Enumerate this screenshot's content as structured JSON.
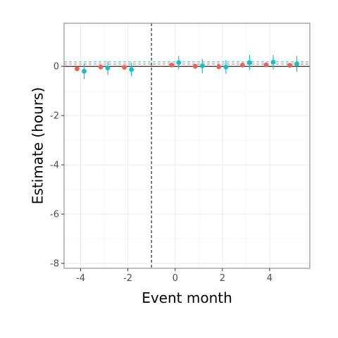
{
  "chart_data": {
    "type": "scatter",
    "title": "",
    "xlabel": "Event month",
    "ylabel": "Estimate (hours)",
    "xlim": [
      -4.7,
      5.7
    ],
    "ylim": [
      -8.2,
      1.75
    ],
    "x_ticks": [
      -4,
      -2,
      0,
      2,
      4
    ],
    "x_tick_labels": [
      "-4",
      "-2",
      "0",
      "2",
      "4"
    ],
    "y_ticks": [
      -8,
      -6,
      -4,
      -2,
      0
    ],
    "y_tick_labels": [
      "-8",
      "-6",
      "-4",
      "-2",
      "0"
    ],
    "grid": true,
    "legend": "none",
    "reference_lines": {
      "horizontal_solid_y": 0,
      "vertical_dashed_x": -1
    },
    "series": [
      {
        "color": "#e8645a",
        "points": [
          {
            "x": -4.15,
            "y": -0.1,
            "lo": -0.1,
            "hi": -0.1
          },
          {
            "x": -3.15,
            "y": -0.03,
            "lo": -0.03,
            "hi": -0.03
          },
          {
            "x": -2.15,
            "y": -0.04,
            "lo": -0.04,
            "hi": -0.04
          },
          {
            "x": -0.15,
            "y": 0.05,
            "lo": 0.05,
            "hi": 0.05
          },
          {
            "x": 0.85,
            "y": 0.0,
            "lo": 0.0,
            "hi": 0.0
          },
          {
            "x": 1.85,
            "y": -0.02,
            "lo": -0.02,
            "hi": -0.02
          },
          {
            "x": 2.85,
            "y": 0.05,
            "lo": 0.05,
            "hi": 0.05
          },
          {
            "x": 3.85,
            "y": 0.06,
            "lo": 0.06,
            "hi": 0.06
          },
          {
            "x": 4.85,
            "y": 0.04,
            "lo": 0.04,
            "hi": 0.04
          }
        ],
        "mean_line_y": 0.09
      },
      {
        "color": "#17bfc1",
        "points": [
          {
            "x": -3.85,
            "y": -0.2,
            "lo": -0.52,
            "hi": 0.12
          },
          {
            "x": -2.85,
            "y": -0.07,
            "lo": -0.35,
            "hi": 0.2
          },
          {
            "x": -1.85,
            "y": -0.13,
            "lo": -0.4,
            "hi": 0.14
          },
          {
            "x": 0.15,
            "y": 0.15,
            "lo": -0.12,
            "hi": 0.42
          },
          {
            "x": 1.15,
            "y": 0.02,
            "lo": -0.28,
            "hi": 0.3
          },
          {
            "x": 2.15,
            "y": -0.03,
            "lo": -0.3,
            "hi": 0.25
          },
          {
            "x": 3.15,
            "y": 0.15,
            "lo": -0.15,
            "hi": 0.45
          },
          {
            "x": 4.15,
            "y": 0.17,
            "lo": -0.12,
            "hi": 0.46
          },
          {
            "x": 5.15,
            "y": 0.1,
            "lo": -0.22,
            "hi": 0.42
          }
        ],
        "mean_line_y": 0.18
      }
    ]
  }
}
